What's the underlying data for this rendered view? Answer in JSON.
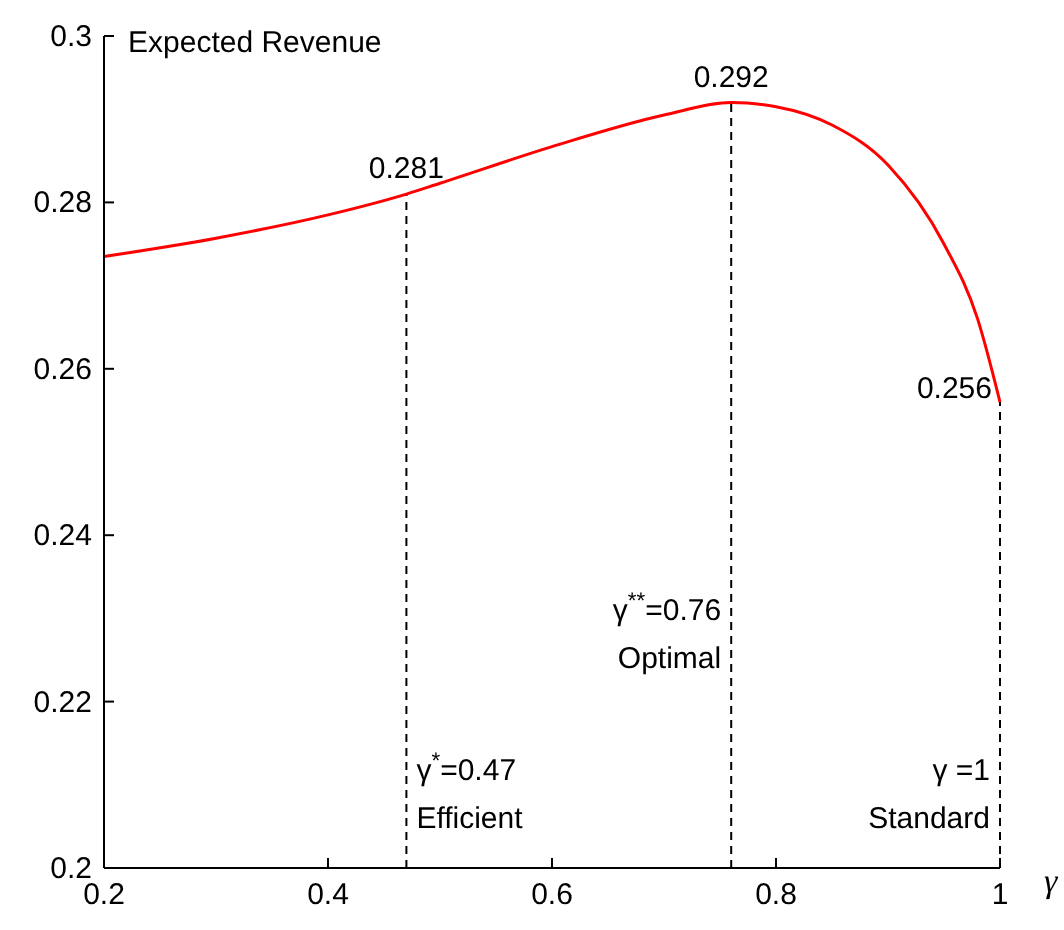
{
  "chart_data": {
    "type": "line",
    "ylabel": "Expected Revenue",
    "xlabel": "γ",
    "series": [
      {
        "color": "#ff0000",
        "x": [
          0.2,
          0.3,
          0.4,
          0.47,
          0.5,
          0.6,
          0.7,
          0.76,
          0.8,
          0.85,
          0.9,
          0.95,
          0.98,
          1
        ],
        "values": [
          0.2735,
          0.2757,
          0.2785,
          0.281,
          0.2823,
          0.2867,
          0.2905,
          0.292,
          0.2915,
          0.2893,
          0.2845,
          0.275,
          0.266,
          0.256
        ]
      }
    ],
    "xlim": [
      0.2,
      1
    ],
    "ylim": [
      0.2,
      0.3
    ],
    "xticks": [
      0.2,
      0.4,
      0.6,
      0.8,
      1
    ],
    "yticks": [
      0.2,
      0.22,
      0.24,
      0.26,
      0.28,
      0.3
    ],
    "ref_lines": [
      {
        "axis": "x",
        "value": 0.47,
        "label": "γ$^{*}$=0.47\nEfficient",
        "line_style": "dashed"
      },
      {
        "axis": "x",
        "value": 0.76,
        "label": "γ$^{**}$=0.76\nOptimal",
        "line_style": "dashed"
      },
      {
        "axis": "x",
        "value": 1,
        "label": "γ =1\nStandard",
        "line_style": "dashed"
      }
    ],
    "annotations": [
      {
        "text": "0.281",
        "x": 0.47,
        "y": 0.281
      },
      {
        "text": "0.292",
        "x": 0.76,
        "y": 0.292
      },
      {
        "text": "0.256",
        "x": 1,
        "y": 0.256
      }
    ],
    "grid": false,
    "marker": "none",
    "line_style": "solid"
  }
}
